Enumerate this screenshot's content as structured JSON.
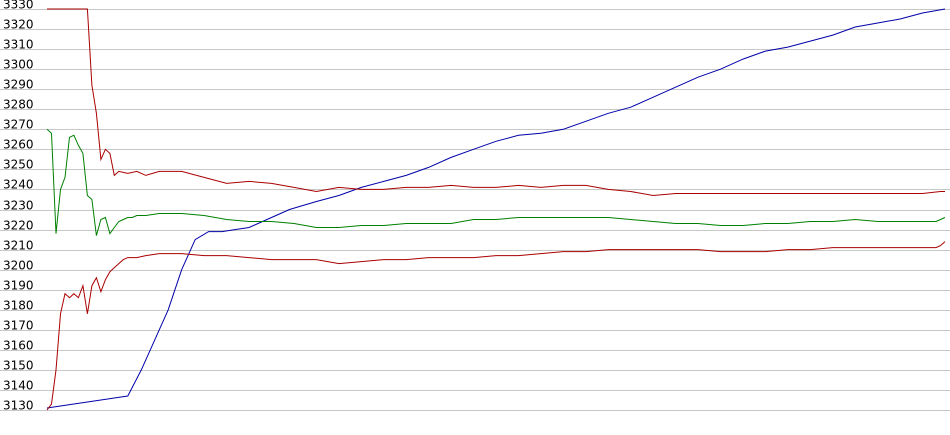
{
  "chart_data": {
    "type": "line",
    "title": "",
    "xlabel": "",
    "ylabel": "",
    "ylim": [
      3130,
      3330
    ],
    "yticks": [
      3130,
      3140,
      3150,
      3160,
      3170,
      3180,
      3190,
      3200,
      3210,
      3220,
      3230,
      3240,
      3250,
      3260,
      3270,
      3280,
      3290,
      3300,
      3310,
      3320,
      3330
    ],
    "grid": true,
    "legend": "none",
    "xlim": [
      0,
      200
    ],
    "series": [
      {
        "color": "#0000aa",
        "x": [
          0,
          3,
          6,
          9,
          12,
          15,
          18,
          21,
          24,
          27,
          30,
          33,
          36,
          39,
          42,
          45,
          48,
          51,
          54,
          57,
          60,
          65,
          70,
          75,
          80,
          85,
          90,
          95,
          100,
          105,
          110,
          115,
          120,
          125,
          130,
          135,
          140,
          145,
          150,
          155,
          160,
          165,
          170,
          175,
          180,
          185,
          190,
          195,
          200
        ],
        "y": [
          3131,
          3132,
          3133,
          3134,
          3135,
          3136,
          3137,
          3150,
          3165,
          3180,
          3200,
          3215,
          3219,
          3219,
          3220,
          3221,
          3224,
          3227,
          3230,
          3232,
          3234,
          3237,
          3241,
          3244,
          3247,
          3251,
          3256,
          3260,
          3264,
          3267,
          3268,
          3270,
          3274,
          3278,
          3281,
          3286,
          3291,
          3296,
          3300,
          3305,
          3309,
          3311,
          3314,
          3317,
          3321,
          3323,
          3325,
          3328,
          3330
        ]
      },
      {
        "color": "#aa0000",
        "x": [
          0,
          4,
          8,
          9,
          10,
          11,
          12,
          13,
          14,
          15,
          16,
          18,
          20,
          22,
          25,
          30,
          35,
          40,
          45,
          50,
          55,
          60,
          65,
          70,
          75,
          80,
          85,
          90,
          95,
          100,
          105,
          110,
          115,
          120,
          125,
          130,
          135,
          140,
          145,
          150,
          155,
          160,
          165,
          170,
          175,
          180,
          185,
          190,
          195,
          199,
          200
        ],
        "y": [
          3330,
          3330,
          3330,
          3330,
          3292,
          3278,
          3255,
          3260,
          3258,
          3247,
          3249,
          3248,
          3249,
          3247,
          3249,
          3249,
          3246,
          3243,
          3244,
          3243,
          3241,
          3239,
          3241,
          3240,
          3240,
          3241,
          3241,
          3242,
          3241,
          3241,
          3242,
          3241,
          3242,
          3242,
          3240,
          3239,
          3237,
          3238,
          3238,
          3238,
          3238,
          3238,
          3238,
          3238,
          3238,
          3238,
          3238,
          3238,
          3238,
          3239,
          3239
        ]
      },
      {
        "color": "#008000",
        "x": [
          0,
          1,
          2,
          3,
          4,
          5,
          6,
          7,
          8,
          9,
          10,
          11,
          12,
          13,
          14,
          15,
          16,
          17,
          18,
          19,
          20,
          22,
          25,
          30,
          35,
          40,
          45,
          50,
          55,
          60,
          65,
          70,
          75,
          80,
          85,
          90,
          95,
          100,
          105,
          110,
          115,
          120,
          125,
          130,
          135,
          140,
          145,
          150,
          155,
          160,
          165,
          170,
          175,
          180,
          185,
          190,
          195,
          198,
          199,
          200
        ],
        "y": [
          3270,
          3268,
          3218,
          3240,
          3246,
          3266,
          3267,
          3262,
          3258,
          3237,
          3235,
          3217,
          3225,
          3226,
          3218,
          3221,
          3224,
          3225,
          3226,
          3226,
          3227,
          3227,
          3228,
          3228,
          3227,
          3225,
          3224,
          3224,
          3223,
          3221,
          3221,
          3222,
          3222,
          3223,
          3223,
          3223,
          3225,
          3225,
          3226,
          3226,
          3226,
          3226,
          3226,
          3225,
          3224,
          3223,
          3223,
          3222,
          3222,
          3223,
          3223,
          3224,
          3224,
          3225,
          3224,
          3224,
          3224,
          3224,
          3225,
          3226
        ]
      },
      {
        "color": "#aa0000",
        "x": [
          0,
          1,
          2,
          3,
          4,
          5,
          6,
          7,
          8,
          9,
          10,
          11,
          12,
          13,
          14,
          15,
          16,
          17,
          18,
          20,
          22,
          25,
          30,
          35,
          40,
          45,
          50,
          55,
          60,
          65,
          70,
          75,
          80,
          85,
          90,
          95,
          100,
          105,
          110,
          115,
          120,
          125,
          130,
          135,
          140,
          145,
          150,
          155,
          160,
          165,
          170,
          175,
          180,
          185,
          190,
          195,
          198,
          199,
          200
        ],
        "y": [
          3130,
          3133,
          3150,
          3178,
          3188,
          3186,
          3188,
          3186,
          3192,
          3178,
          3192,
          3196,
          3189,
          3195,
          3199,
          3201,
          3203,
          3205,
          3206,
          3206,
          3207,
          3208,
          3208,
          3207,
          3207,
          3206,
          3205,
          3205,
          3205,
          3203,
          3204,
          3205,
          3205,
          3206,
          3206,
          3206,
          3207,
          3207,
          3208,
          3209,
          3209,
          3210,
          3210,
          3210,
          3210,
          3210,
          3209,
          3209,
          3209,
          3210,
          3210,
          3211,
          3211,
          3211,
          3211,
          3211,
          3211,
          3212,
          3214
        ]
      }
    ]
  }
}
